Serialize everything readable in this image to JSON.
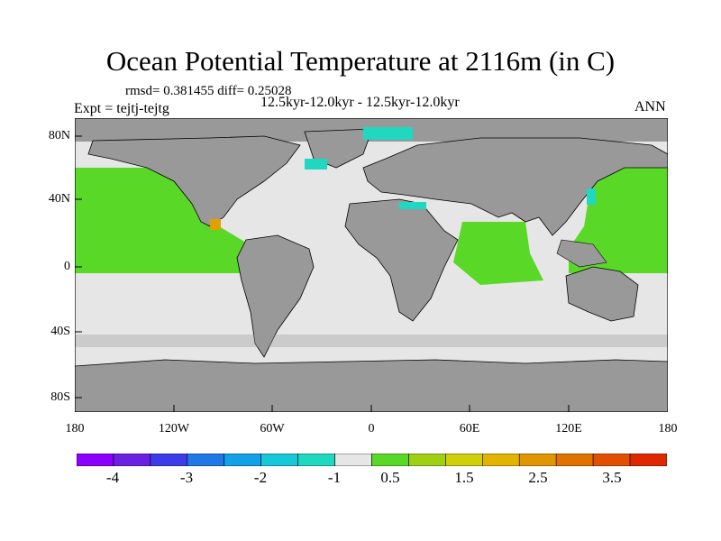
{
  "title": "Ocean Potential Temperature at 2116m (in C)",
  "stats": "rmsd= 0.381455 diff= 0.25028",
  "period": "12.5kyr-12.0kyr - 12.5kyr-12.0kyr",
  "expt": "Expt = tejtj-tejtg",
  "season": "ANN",
  "lat_labels": [
    "80N",
    "40N",
    "0",
    "40S",
    "80S"
  ],
  "lon_labels": [
    "180",
    "120W",
    "60W",
    "0",
    "60E",
    "120E",
    "180"
  ],
  "colorbar": {
    "colors": [
      "#8b00ff",
      "#6a22e0",
      "#3c3ce8",
      "#1e78e6",
      "#12a0e8",
      "#16c8d8",
      "#20d8c0",
      "#e6e6e6",
      "#5ad828",
      "#a0d014",
      "#d0d00a",
      "#e0b400",
      "#e09600",
      "#e07200",
      "#e05000",
      "#e02800"
    ],
    "labels": [
      "-4",
      "-3",
      "-2",
      "-1",
      "0.5",
      "1.5",
      "2.5",
      "3.5"
    ]
  },
  "map_colors": {
    "land": "#999999",
    "ocean_neutral": "#e6e6e6",
    "warm": "#5ad828",
    "cool": "#20d8c0",
    "hot": "#e0a000"
  }
}
